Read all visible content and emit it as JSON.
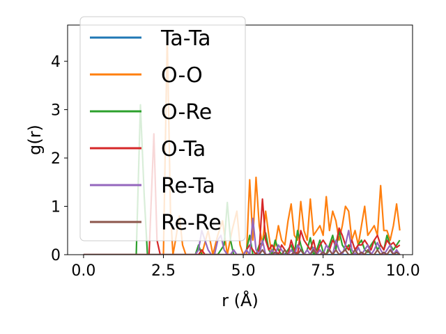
{
  "chart_data": {
    "type": "line",
    "title": "",
    "xlabel": "r (Å)",
    "ylabel": "g(r)",
    "xlim": [
      -0.5,
      10.3
    ],
    "ylim": [
      0,
      4.75
    ],
    "xticks": [
      0.0,
      2.5,
      5.0,
      7.5,
      10.0
    ],
    "xtick_labels": [
      "0.0",
      "2.5",
      "5.0",
      "7.5",
      "10.0"
    ],
    "yticks": [
      0,
      1,
      2,
      3,
      4
    ],
    "ytick_labels": [
      "0",
      "1",
      "2",
      "3",
      "4"
    ],
    "legend_position": "upper-left",
    "series": [
      {
        "name": "Ta-Ta",
        "color": "#1f77b4",
        "x": [
          0.0,
          9.9
        ],
        "y": [
          0.0,
          0.0
        ]
      },
      {
        "name": "O-O",
        "color": "#ff7f0e",
        "x": [
          0.0,
          2.4,
          2.5,
          2.62,
          2.72,
          2.8,
          2.88,
          3.0,
          3.1,
          3.2,
          3.35,
          3.5,
          3.7,
          3.9,
          4.05,
          4.2,
          4.35,
          4.5,
          4.65,
          4.8,
          4.9,
          5.0,
          5.1,
          5.2,
          5.3,
          5.4,
          5.5,
          5.6,
          5.7,
          5.8,
          5.9,
          6.0,
          6.1,
          6.2,
          6.3,
          6.4,
          6.5,
          6.6,
          6.7,
          6.8,
          6.9,
          7.0,
          7.1,
          7.2,
          7.3,
          7.4,
          7.5,
          7.6,
          7.7,
          7.8,
          7.9,
          8.0,
          8.1,
          8.2,
          8.3,
          8.4,
          8.5,
          8.6,
          8.7,
          8.8,
          8.9,
          9.0,
          9.1,
          9.2,
          9.3,
          9.4,
          9.5,
          9.6,
          9.7,
          9.8,
          9.9
        ],
        "y": [
          0.0,
          0.0,
          0.0,
          4.5,
          0.9,
          0.0,
          0.3,
          0.8,
          0.2,
          0.0,
          0.0,
          0.0,
          0.0,
          0.5,
          0.0,
          0.4,
          0.7,
          0.0,
          0.5,
          0.9,
          0.2,
          0.0,
          0.0,
          1.55,
          0.3,
          1.6,
          0.6,
          0.2,
          0.9,
          0.4,
          0.0,
          0.2,
          0.6,
          0.3,
          0.2,
          0.7,
          1.05,
          0.4,
          0.3,
          1.1,
          0.5,
          0.3,
          1.15,
          0.4,
          0.5,
          0.6,
          0.4,
          1.2,
          0.5,
          0.9,
          0.7,
          0.3,
          0.6,
          1.0,
          0.9,
          0.3,
          0.5,
          0.2,
          0.6,
          1.0,
          0.4,
          0.5,
          0.6,
          0.4,
          1.43,
          0.5,
          0.5,
          0.3,
          0.6,
          1.05,
          0.5
        ]
      },
      {
        "name": "O-Re",
        "color": "#2ca02c",
        "x": [
          0.0,
          1.65,
          1.78,
          1.9,
          2.0,
          2.1,
          3.0,
          3.5,
          3.6,
          3.7,
          3.8,
          3.9,
          4.0,
          4.1,
          4.2,
          4.3,
          4.4,
          4.5,
          4.6,
          4.7,
          4.8,
          4.9,
          5.0,
          5.1,
          5.2,
          5.3,
          5.4,
          5.5,
          5.6,
          5.7,
          5.8,
          5.9,
          6.0,
          6.1,
          6.2,
          6.3,
          6.4,
          6.5,
          6.6,
          6.7,
          6.8,
          6.9,
          7.0,
          7.1,
          7.2,
          7.3,
          7.4,
          7.5,
          7.6,
          7.7,
          7.8,
          7.9,
          8.0,
          8.1,
          8.2,
          8.3,
          8.4,
          8.5,
          8.6,
          8.7,
          8.8,
          8.9,
          9.0,
          9.1,
          9.2,
          9.3,
          9.4,
          9.5,
          9.6,
          9.7,
          9.8,
          9.9
        ],
        "y": [
          0.0,
          0.0,
          3.1,
          1.2,
          0.0,
          0.0,
          0.0,
          0.0,
          0.2,
          0.0,
          0.0,
          0.0,
          0.0,
          0.0,
          0.0,
          0.1,
          0.2,
          1.08,
          0.3,
          0.0,
          0.0,
          0.0,
          0.0,
          0.1,
          0.4,
          0.0,
          0.0,
          0.2,
          0.25,
          0.45,
          0.1,
          0.0,
          0.3,
          0.1,
          0.0,
          0.0,
          0.1,
          0.2,
          0.0,
          0.5,
          0.2,
          0.0,
          0.1,
          0.35,
          0.0,
          0.1,
          0.3,
          0.05,
          0.0,
          0.2,
          0.4,
          0.1,
          0.5,
          0.2,
          0.1,
          0.2,
          0.0,
          0.1,
          0.2,
          0.3,
          0.1,
          0.05,
          0.2,
          0.3,
          0.1,
          0.2,
          0.1,
          0.4,
          0.2,
          0.1,
          0.2,
          0.3
        ]
      },
      {
        "name": "O-Ta",
        "color": "#d62728",
        "x": [
          0.0,
          1.85,
          1.95,
          2.05,
          2.2,
          2.3,
          2.4,
          3.0,
          3.4,
          3.5,
          3.6,
          3.7,
          3.8,
          3.9,
          4.0,
          4.1,
          4.2,
          4.3,
          4.4,
          4.5,
          4.6,
          4.7,
          4.8,
          4.9,
          5.0,
          5.1,
          5.2,
          5.3,
          5.4,
          5.5,
          5.6,
          5.7,
          5.8,
          5.9,
          6.0,
          6.1,
          6.2,
          6.3,
          6.4,
          6.5,
          6.6,
          6.7,
          6.8,
          6.9,
          7.0,
          7.1,
          7.2,
          7.3,
          7.4,
          7.5,
          7.6,
          7.7,
          7.8,
          7.9,
          8.0,
          8.1,
          8.2,
          8.3,
          8.4,
          8.5,
          8.6,
          8.7,
          8.8,
          8.9,
          9.0,
          9.1,
          9.2,
          9.3,
          9.4,
          9.5,
          9.6,
          9.7,
          9.8,
          9.9
        ],
        "y": [
          0.0,
          0.0,
          0.0,
          0.0,
          2.5,
          0.3,
          0.0,
          0.0,
          0.0,
          0.0,
          0.0,
          0.1,
          0.0,
          0.0,
          0.0,
          0.0,
          0.0,
          0.0,
          0.0,
          0.0,
          0.0,
          0.0,
          0.0,
          0.0,
          0.0,
          0.1,
          0.2,
          0.1,
          0.0,
          0.1,
          1.15,
          0.3,
          0.1,
          0.2,
          0.1,
          0.0,
          0.2,
          0.1,
          0.0,
          0.3,
          0.1,
          0.0,
          0.5,
          0.3,
          0.2,
          0.1,
          0.3,
          0.0,
          0.2,
          0.3,
          0.2,
          0.1,
          0.3,
          0.2,
          0.55,
          0.4,
          0.2,
          0.1,
          0.3,
          0.1,
          0.2,
          0.2,
          0.3,
          0.2,
          0.1,
          0.3,
          0.4,
          0.2,
          0.1,
          0.3,
          0.2,
          0.25,
          0.15,
          0.2
        ]
      },
      {
        "name": "Re-Ta",
        "color": "#9467bd",
        "x": [
          0.0,
          3.5,
          3.6,
          3.7,
          3.8,
          3.9,
          4.0,
          4.1,
          4.2,
          4.3,
          4.4,
          4.5,
          4.6,
          4.7,
          4.8,
          4.9,
          5.0,
          5.1,
          5.2,
          5.3,
          5.4,
          5.5,
          5.6,
          5.7,
          5.8,
          5.9,
          6.0,
          6.1,
          6.2,
          6.3,
          6.4,
          6.5,
          6.6,
          6.7,
          6.8,
          6.9,
          7.0,
          7.1,
          7.2,
          7.3,
          7.4,
          7.5,
          7.6,
          7.7,
          7.8,
          7.9,
          8.0,
          8.1,
          8.2,
          8.3,
          8.4,
          8.5,
          8.6,
          8.7,
          8.8,
          8.9,
          9.0,
          9.1,
          9.2,
          9.3,
          9.4,
          9.5,
          9.6,
          9.7,
          9.8,
          9.9
        ],
        "y": [
          0.0,
          0.0,
          0.1,
          0.5,
          0.3,
          0.1,
          0.0,
          0.0,
          0.3,
          0.4,
          0.1,
          0.0,
          0.0,
          0.1,
          0.0,
          0.0,
          0.0,
          0.1,
          0.0,
          0.75,
          0.1,
          0.0,
          0.3,
          0.0,
          0.0,
          0.1,
          0.0,
          0.2,
          0.1,
          0.0,
          0.0,
          0.1,
          0.0,
          0.2,
          0.1,
          0.0,
          0.1,
          0.0,
          0.15,
          0.0,
          0.1,
          0.0,
          0.2,
          0.1,
          0.0,
          0.3,
          0.1,
          0.0,
          0.2,
          0.5,
          0.1,
          0.0,
          0.15,
          0.0,
          0.1,
          0.2,
          0.0,
          0.1,
          0.25,
          0.1,
          0.0,
          0.1,
          0.2,
          0.0,
          0.1,
          0.0
        ]
      },
      {
        "name": "Re-Re",
        "color": "#8c564b",
        "x": [
          0.0,
          5.5,
          5.6,
          5.7,
          5.8,
          5.9,
          6.0,
          6.1,
          6.2,
          6.3,
          6.4,
          6.5,
          6.6,
          6.7,
          6.8,
          6.9,
          7.0,
          7.1,
          7.2,
          7.3,
          7.4,
          7.5,
          7.6,
          7.7,
          7.8,
          7.9,
          8.0,
          8.1,
          8.2,
          8.3,
          8.4,
          8.5,
          8.6,
          8.7,
          8.8,
          8.9,
          9.0,
          9.1,
          9.2,
          9.3,
          9.4,
          9.5,
          9.6,
          9.7,
          9.8,
          9.9
        ],
        "y": [
          0.0,
          0.0,
          0.1,
          0.0,
          0.0,
          0.0,
          0.05,
          0.0,
          0.0,
          0.1,
          0.0,
          0.0,
          0.05,
          0.0,
          0.1,
          0.0,
          0.0,
          0.0,
          0.1,
          0.0,
          0.0,
          0.05,
          0.0,
          0.1,
          0.0,
          0.1,
          0.0,
          0.05,
          0.1,
          0.0,
          0.0,
          0.1,
          0.0,
          0.05,
          0.0,
          0.1,
          0.0,
          0.0,
          0.1,
          0.0,
          0.05,
          0.0,
          0.1,
          0.0,
          0.05,
          0.0
        ]
      }
    ]
  }
}
